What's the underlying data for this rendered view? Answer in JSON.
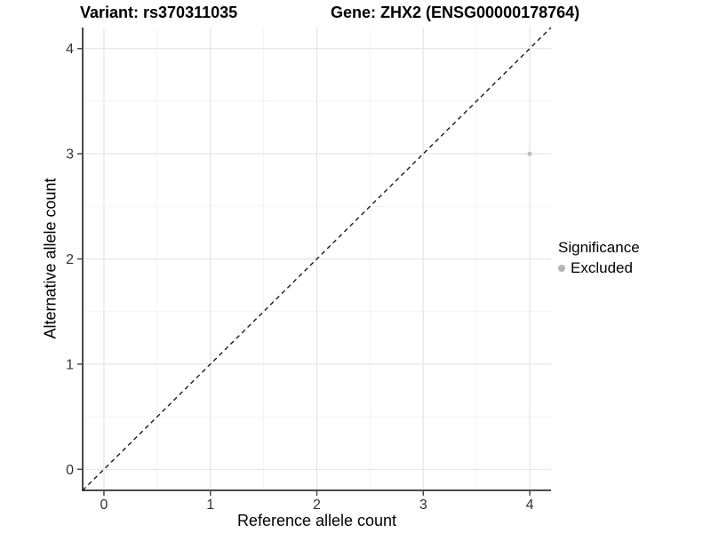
{
  "chart_data": {
    "type": "scatter",
    "titles": {
      "left": "Variant: rs370311035",
      "right": "Gene: ZHX2 (ENSG00000178764)"
    },
    "xlabel": "Reference allele count",
    "ylabel": "Alternative allele count",
    "xlim": [
      -0.2,
      4.2
    ],
    "ylim": [
      -0.2,
      4.2
    ],
    "xticks": [
      0,
      1,
      2,
      3,
      4
    ],
    "yticks": [
      0,
      1,
      2,
      3,
      4
    ],
    "grid_minor_x": [
      0.5,
      1.5,
      2.5,
      3.5
    ],
    "grid_minor_y": [
      0.5,
      1.5,
      2.5,
      3.5
    ],
    "grid": "major+minor",
    "identity_line": {
      "from": [
        -0.2,
        -0.2
      ],
      "to": [
        4.2,
        4.2
      ],
      "style": "dashed",
      "color": "#1a1a1a"
    },
    "points": [
      {
        "x": 4,
        "y": 3,
        "significance": "Excluded",
        "color": "#bebebe"
      }
    ],
    "legend": {
      "title": "Significance",
      "position": "right",
      "items": [
        {
          "label": "Excluded",
          "color": "#b5b5b5"
        }
      ]
    },
    "colors": {
      "background": "#ffffff",
      "grid_major": "#e5e5e5",
      "grid_minor": "#f3f3f3",
      "axis": "#4a4a4a",
      "tick_text": "#333333"
    }
  }
}
